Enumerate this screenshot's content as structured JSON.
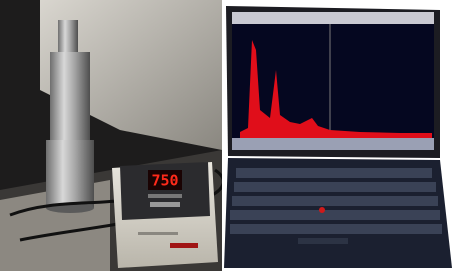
{
  "display": "750"
}
